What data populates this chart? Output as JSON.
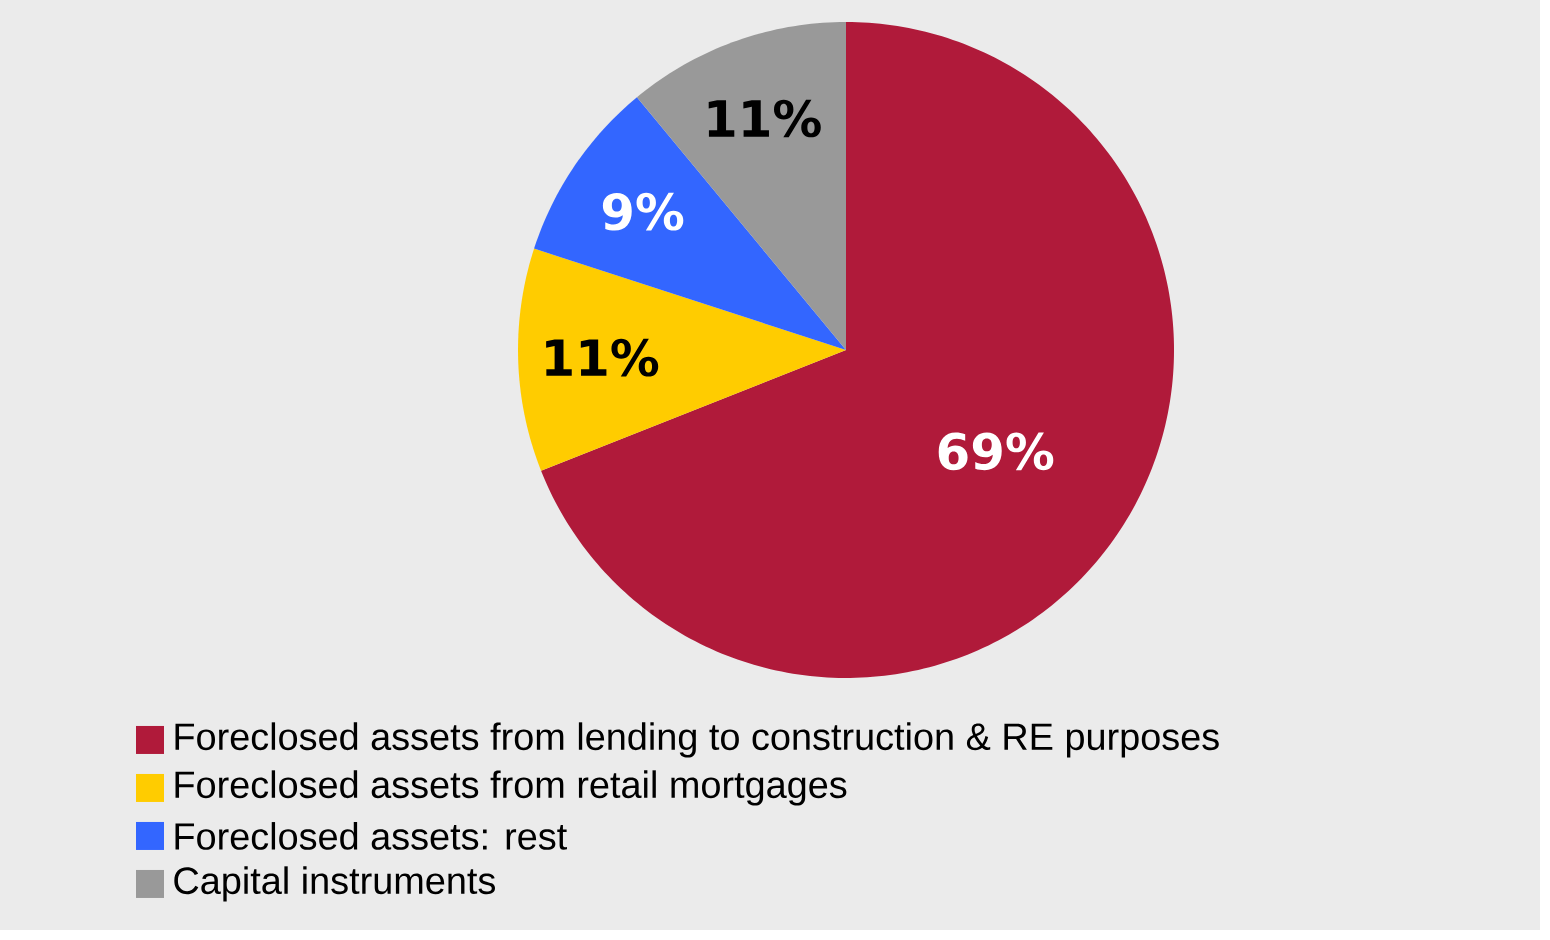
{
  "chart_data": {
    "type": "pie",
    "categories": [
      "Foreclosed assets from lending to construction & RE purposes",
      "Foreclosed assets from retail mortgages",
      "Foreclosed assets: rest",
      "Capital instruments"
    ],
    "values": [
      69,
      11,
      9,
      11
    ],
    "colors": [
      "#b01a3a",
      "#ffcc00",
      "#3366ff",
      "#999999"
    ],
    "value_labels": [
      "69%",
      "11%",
      "9%",
      "11%"
    ],
    "legend": "bottom"
  }
}
